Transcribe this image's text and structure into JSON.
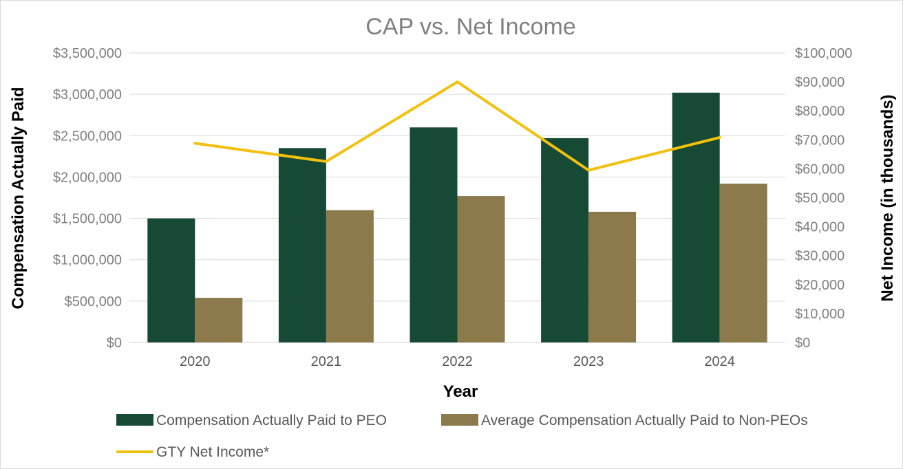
{
  "chart_data": {
    "type": "bar",
    "title": "CAP vs. Net Income",
    "xlabel": "Year",
    "ylabel": "Compensation Actually Paid",
    "y2label": "Net Income (in thousands)",
    "categories": [
      "2020",
      "2021",
      "2022",
      "2023",
      "2024"
    ],
    "ylim": [
      0,
      3500000
    ],
    "y2lim": [
      0,
      100000
    ],
    "ytick_labels": [
      "$0",
      "$500,000",
      "$1,000,000",
      "$1,500,000",
      "$2,000,000",
      "$2,500,000",
      "$3,000,000",
      "$3,500,000"
    ],
    "y2tick_labels": [
      "$0",
      "$10,000",
      "$20,000",
      "$30,000",
      "$40,000",
      "$50,000",
      "$60,000",
      "$70,000",
      "$80,000",
      "$90,000",
      "$100,000"
    ],
    "grid": true,
    "legend_position": "bottom",
    "series": [
      {
        "name": "Compensation Actually Paid to PEO",
        "kind": "bar",
        "axis": "left",
        "color": "#174a35",
        "values": [
          1500000,
          2350000,
          2600000,
          2470000,
          3020000
        ]
      },
      {
        "name": "Average Compensation Actually Paid to Non-PEOs",
        "kind": "bar",
        "axis": "left",
        "color": "#8c7a4c",
        "values": [
          540000,
          1600000,
          1770000,
          1580000,
          1920000
        ]
      },
      {
        "name": "GTY Net Income*",
        "kind": "line",
        "axis": "right",
        "color": "#f2c10f",
        "values": [
          68800,
          62500,
          90000,
          59500,
          70800
        ]
      }
    ]
  }
}
